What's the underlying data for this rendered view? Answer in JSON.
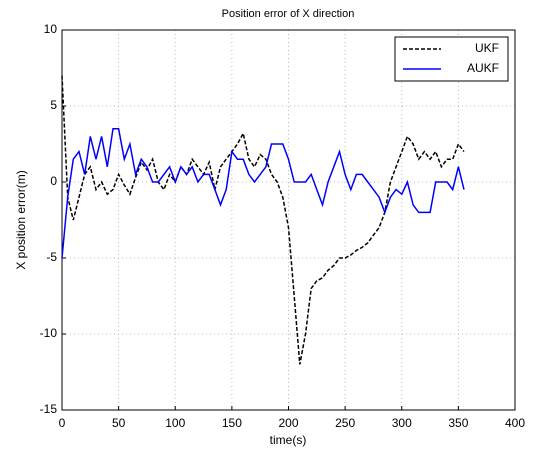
{
  "chart_data": {
    "type": "line",
    "title": "Position error of X direction",
    "x_label": "time(s)",
    "y_label": "X position error(m)",
    "x": [
      0,
      5,
      10,
      15,
      20,
      25,
      30,
      35,
      40,
      45,
      50,
      55,
      60,
      65,
      70,
      75,
      80,
      85,
      90,
      95,
      100,
      105,
      110,
      115,
      120,
      125,
      130,
      135,
      140,
      145,
      150,
      155,
      160,
      165,
      170,
      175,
      180,
      185,
      190,
      195,
      200,
      205,
      210,
      215,
      220,
      225,
      230,
      235,
      240,
      245,
      250,
      255,
      260,
      265,
      270,
      275,
      280,
      285,
      290,
      295,
      300,
      305,
      310,
      315,
      320,
      325,
      330,
      335,
      340,
      345,
      350,
      355
    ],
    "series": [
      {
        "name": "UKF",
        "color": "#000000",
        "dash": true,
        "values": [
          7,
          -1,
          -2.5,
          -1,
          0.5,
          1,
          -0.5,
          0,
          -0.8,
          -0.5,
          0.5,
          -0.2,
          -0.8,
          0.3,
          1.3,
          0.8,
          1.5,
          0,
          -0.5,
          0.5,
          0,
          1,
          0.5,
          1.5,
          1,
          0.5,
          1.3,
          -0.5,
          1,
          1.5,
          2,
          2.5,
          3.2,
          1.5,
          1,
          1.8,
          1.5,
          0.5,
          0,
          -1,
          -3,
          -7.5,
          -12,
          -10,
          -7,
          -6.5,
          -6.3,
          -5.8,
          -5.5,
          -5,
          -5,
          -4.8,
          -4.5,
          -4.3,
          -4,
          -3.5,
          -3,
          -2,
          0,
          1,
          2,
          3,
          2.5,
          1.5,
          2,
          1.5,
          2,
          1,
          1.5,
          1.5,
          2.5,
          2
        ]
      },
      {
        "name": "AUKF",
        "color": "#0000ff",
        "dash": false,
        "values": [
          -5,
          -1,
          1.5,
          2,
          0.5,
          3,
          1.5,
          3,
          1,
          3.5,
          3.5,
          1.5,
          2.5,
          0.5,
          1.5,
          1,
          0,
          0,
          0.5,
          1,
          0,
          1,
          0.5,
          1,
          0,
          0.5,
          0.5,
          -0.5,
          -1.5,
          -0.5,
          2,
          1.5,
          1.5,
          0.5,
          0,
          0.5,
          1,
          2.5,
          2.5,
          2.5,
          1.5,
          0,
          0,
          0,
          0.5,
          -0.5,
          -1.5,
          0,
          1,
          2,
          0.5,
          -0.5,
          0.5,
          0.5,
          0,
          -0.5,
          -1,
          -2,
          -1,
          -0.5,
          -0.8,
          0,
          -1.5,
          -2,
          -2,
          -2,
          0,
          0,
          0,
          -0.5,
          1,
          -0.5
        ]
      }
    ],
    "xlim": [
      0,
      400
    ],
    "xticks": [
      0,
      50,
      100,
      150,
      200,
      250,
      300,
      350,
      400
    ],
    "ylim": [
      -15,
      10
    ],
    "yticks": [
      -15,
      -10,
      -5,
      0,
      5,
      10
    ],
    "grid": true,
    "legend": "upper right"
  }
}
